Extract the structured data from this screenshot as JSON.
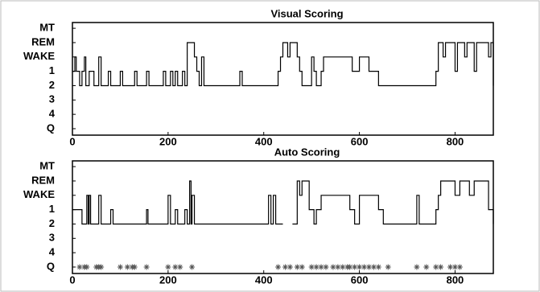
{
  "chart_data": [
    {
      "type": "line",
      "title": "Visual Scoring",
      "xlim": [
        0,
        880
      ],
      "xticks": [
        0,
        200,
        400,
        600,
        800
      ],
      "ylim": [
        -0.45,
        7.4
      ],
      "yticks": [
        {
          "value": 0,
          "label": "Q"
        },
        {
          "value": 1,
          "label": "4"
        },
        {
          "value": 2,
          "label": "3"
        },
        {
          "value": 3,
          "label": "2"
        },
        {
          "value": 4,
          "label": "1"
        },
        {
          "value": 5,
          "label": "WAKE"
        },
        {
          "value": 6,
          "label": "REM"
        },
        {
          "value": 7,
          "label": "MT"
        }
      ],
      "series": [
        {
          "color": "#000000",
          "x": [
            0,
            5,
            8,
            15,
            20,
            25,
            28,
            35,
            45,
            55,
            60,
            75,
            80,
            100,
            105,
            130,
            135,
            155,
            160,
            190,
            195,
            205,
            210,
            215,
            220,
            230,
            235,
            240,
            255,
            260,
            265,
            270,
            275,
            350,
            355,
            430,
            435,
            440,
            450,
            455,
            470,
            475,
            480,
            500,
            505,
            510,
            520,
            525,
            585,
            600,
            620,
            630,
            640,
            760,
            765,
            775,
            780,
            800,
            805,
            820,
            825,
            840,
            845,
            870,
            875,
            880
          ],
          "values": [
            4,
            5,
            4,
            3,
            4,
            5,
            3,
            4,
            3,
            5,
            3,
            4,
            3,
            4,
            3,
            4,
            3,
            4,
            3,
            4,
            3,
            4,
            3,
            4,
            3,
            4,
            3,
            6,
            5,
            4,
            3,
            5,
            3,
            4,
            3,
            4,
            5,
            6,
            5,
            6,
            5,
            4,
            3,
            5,
            4,
            3,
            4,
            5,
            4,
            5,
            4,
            4,
            3,
            4,
            6,
            5,
            6,
            4,
            6,
            5,
            6,
            4,
            6,
            5,
            6,
            3
          ]
        }
      ]
    },
    {
      "type": "line",
      "title": "Auto Scoring",
      "xlim": [
        0,
        880
      ],
      "xticks": [
        0,
        200,
        400,
        600,
        800
      ],
      "ylim": [
        -0.45,
        7.4
      ],
      "yticks": [
        {
          "value": 0,
          "label": "Q"
        },
        {
          "value": 1,
          "label": "4"
        },
        {
          "value": 2,
          "label": "3"
        },
        {
          "value": 3,
          "label": "2"
        },
        {
          "value": 4,
          "label": "1"
        },
        {
          "value": 5,
          "label": "WAKE"
        },
        {
          "value": 6,
          "label": "REM"
        },
        {
          "value": 7,
          "label": "MT"
        }
      ],
      "series": [
        {
          "color": "#000000",
          "x": [
            0,
            20,
            30,
            33,
            35,
            38,
            55,
            60,
            80,
            85,
            155,
            158,
            200,
            205,
            215,
            220,
            235,
            240,
            245,
            248,
            250,
            255,
            410,
            415,
            420,
            425,
            440,
            460,
            470,
            475,
            480,
            495,
            505,
            510,
            520,
            580,
            590,
            600,
            640,
            650,
            720,
            725,
            760,
            765,
            770,
            800,
            810,
            830,
            840,
            870,
            880
          ],
          "values": [
            4,
            3,
            5,
            3,
            5,
            3,
            5,
            3,
            4,
            3,
            4,
            3,
            5,
            3,
            4,
            3,
            4,
            3,
            6,
            3,
            5,
            3,
            5,
            3,
            5,
            3,
            null,
            3,
            6,
            5,
            6,
            4,
            3,
            4,
            5,
            4,
            3,
            5,
            4,
            3,
            5,
            3,
            4,
            5,
            6,
            5,
            6,
            5,
            6,
            4,
            3
          ]
        },
        {
          "color": "#555555",
          "marker": "*",
          "x": [
            15,
            25,
            30,
            50,
            55,
            60,
            100,
            115,
            125,
            130,
            155,
            200,
            215,
            225,
            250,
            430,
            445,
            455,
            470,
            480,
            500,
            510,
            520,
            530,
            545,
            555,
            565,
            575,
            580,
            590,
            600,
            610,
            620,
            630,
            640,
            660,
            720,
            740,
            760,
            770,
            790,
            800,
            810
          ],
          "values": [
            0,
            0,
            0,
            0,
            0,
            0,
            0,
            0,
            0,
            0,
            0,
            0,
            0,
            0,
            0,
            0,
            0,
            0,
            0,
            0,
            0,
            0,
            0,
            0,
            0,
            0,
            0,
            0,
            0,
            0,
            0,
            0,
            0,
            0,
            0,
            0,
            0,
            0,
            0,
            0,
            0,
            0,
            0
          ]
        }
      ]
    }
  ]
}
